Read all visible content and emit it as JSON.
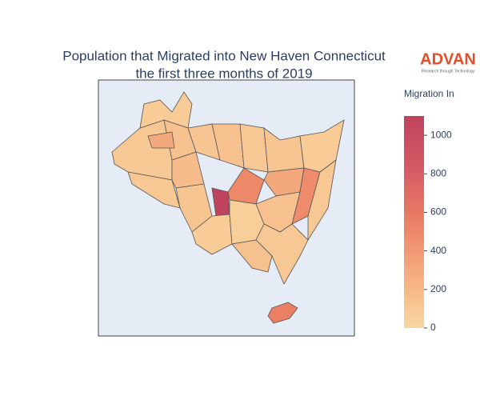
{
  "chart_data": {
    "type": "choropleth",
    "title": "Population that Migrated into New Haven Connecticut",
    "subtitle": "the first three months of 2019",
    "colorbar_title": "Migration In",
    "values": [
      100,
      80,
      150,
      180,
      120,
      150,
      100,
      120,
      80,
      120,
      1100,
      500,
      300,
      480,
      100,
      80,
      60,
      150,
      100,
      150,
      560,
      100,
      300
    ],
    "colorscale": [
      "#f9d7a0",
      "#f5ad80",
      "#eb8064",
      "#d55a64",
      "#c0435e"
    ],
    "ylim": [
      0,
      1100
    ],
    "yticks": [
      0,
      200,
      400,
      600,
      800,
      1000
    ]
  },
  "logo": {
    "name": "ADVAN",
    "tagline": "Research through Technology"
  }
}
